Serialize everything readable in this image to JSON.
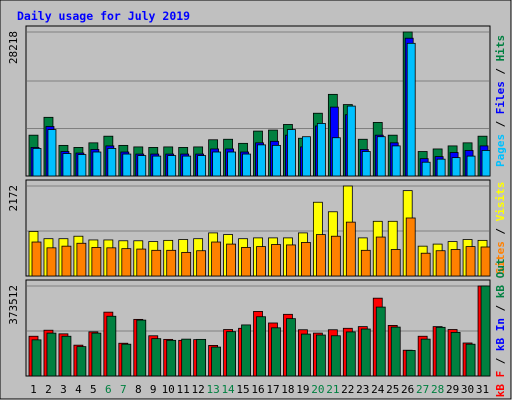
{
  "chart_data": {
    "type": "bar",
    "title": "Daily usage for July 2019",
    "days": [
      "1",
      "2",
      "3",
      "4",
      "5",
      "6",
      "7",
      "8",
      "9",
      "10",
      "11",
      "12",
      "13",
      "14",
      "15",
      "16",
      "17",
      "18",
      "19",
      "20",
      "21",
      "22",
      "23",
      "24",
      "25",
      "26",
      "27",
      "28",
      "29",
      "30",
      "31"
    ],
    "weekend_days": [
      "6",
      "7",
      "13",
      "14",
      "20",
      "21",
      "27",
      "28"
    ],
    "panels": [
      {
        "id": "hits-files-pages",
        "max_label": "28218",
        "ylim": [
          0,
          28218
        ],
        "axis_labels": [
          {
            "text": "Pages",
            "color": "#00c0ff"
          },
          {
            "text": "Files",
            "color": "#0000ff"
          },
          {
            "text": "Hits",
            "color": "#008040"
          }
        ],
        "series": [
          {
            "name": "Hits",
            "color": "#008040",
            "values": [
              8000,
              11500,
              6000,
              5600,
              6500,
              7800,
              6000,
              5700,
              5600,
              5700,
              5600,
              5700,
              7100,
              7200,
              6400,
              8800,
              9000,
              10100,
              7400,
              12300,
              16000,
              14000,
              7200,
              10500,
              8000,
              28218,
              4800,
              5300,
              5900,
              6500,
              7800
            ]
          },
          {
            "name": "Files",
            "color": "#0000ff",
            "values": [
              5600,
              9700,
              4800,
              4500,
              5200,
              5900,
              4700,
              4300,
              4300,
              4300,
              4300,
              4300,
              5300,
              5300,
              4700,
              6500,
              6800,
              8000,
              5700,
              9800,
              13500,
              12000,
              5200,
              8000,
              6500,
              27000,
              3400,
              3800,
              4600,
              5000,
              5900
            ]
          },
          {
            "name": "Pages",
            "color": "#00c0ff",
            "values": [
              5400,
              9100,
              4400,
              4200,
              4700,
              5400,
              4300,
              4000,
              3900,
              4000,
              3900,
              4000,
              4700,
              4700,
              4300,
              6100,
              6000,
              9100,
              7700,
              10300,
              7500,
              13700,
              4800,
              7700,
              5900,
              26000,
              2700,
              3300,
              3600,
              3900,
              5000
            ]
          }
        ]
      },
      {
        "id": "visits-sites",
        "max_label": "2172",
        "ylim": [
          0,
          2172
        ],
        "axis_labels": [
          {
            "text": "Sites",
            "color": "#ff8000"
          },
          {
            "text": "Visits",
            "color": "#ffff00"
          }
        ],
        "series": [
          {
            "name": "Visits",
            "color": "#ffff00",
            "values": [
              1075,
              900,
              900,
              960,
              870,
              870,
              850,
              850,
              830,
              860,
              880,
              900,
              1040,
              1000,
              900,
              920,
              920,
              920,
              1040,
              1780,
              1550,
              2172,
              920,
              1320,
              1320,
              2060,
              720,
              770,
              830,
              880,
              860
            ]
          },
          {
            "name": "Sites",
            "color": "#ff8000",
            "values": [
              820,
              680,
              720,
              790,
              690,
              680,
              660,
              650,
              620,
              620,
              570,
              610,
              820,
              770,
              690,
              710,
              760,
              750,
              810,
              1000,
              960,
              1300,
              620,
              940,
              640,
              1400,
              550,
              610,
              640,
              710,
              700
            ]
          }
        ]
      },
      {
        "id": "kbytes",
        "max_label": "373512",
        "ylim": [
          0,
          373512
        ],
        "axis_labels": [
          {
            "text": "kB F",
            "color": "#ff0000"
          },
          {
            "text": "kB In",
            "color": "#0000ff"
          },
          {
            "text": "kB Out",
            "color": "#008040"
          }
        ],
        "series": [
          {
            "name": "kB F",
            "color": "#ff0000",
            "values": [
              165000,
              190000,
              175000,
              128000,
              183000,
              265000,
              136000,
              235000,
              167000,
              152000,
              148000,
              151000,
              127000,
              193000,
              198000,
              268000,
              220000,
              256000,
              192000,
              178000,
              192000,
              198000,
              205000,
              323000,
              210000,
              107000,
              165000,
              205000,
              193000,
              137000,
              373512
            ]
          },
          {
            "name": "kB Out",
            "color": "#008040",
            "values": [
              150000,
              178000,
              165000,
              122000,
              178000,
              248000,
              132000,
              232000,
              155000,
              148000,
              153000,
              152000,
              120000,
              184000,
              212000,
              246000,
              200000,
              238000,
              174000,
              170000,
              167000,
              183000,
              195000,
              286000,
              203000,
              106000,
              153000,
              202000,
              181000,
              132000,
              373512
            ]
          }
        ]
      }
    ]
  }
}
